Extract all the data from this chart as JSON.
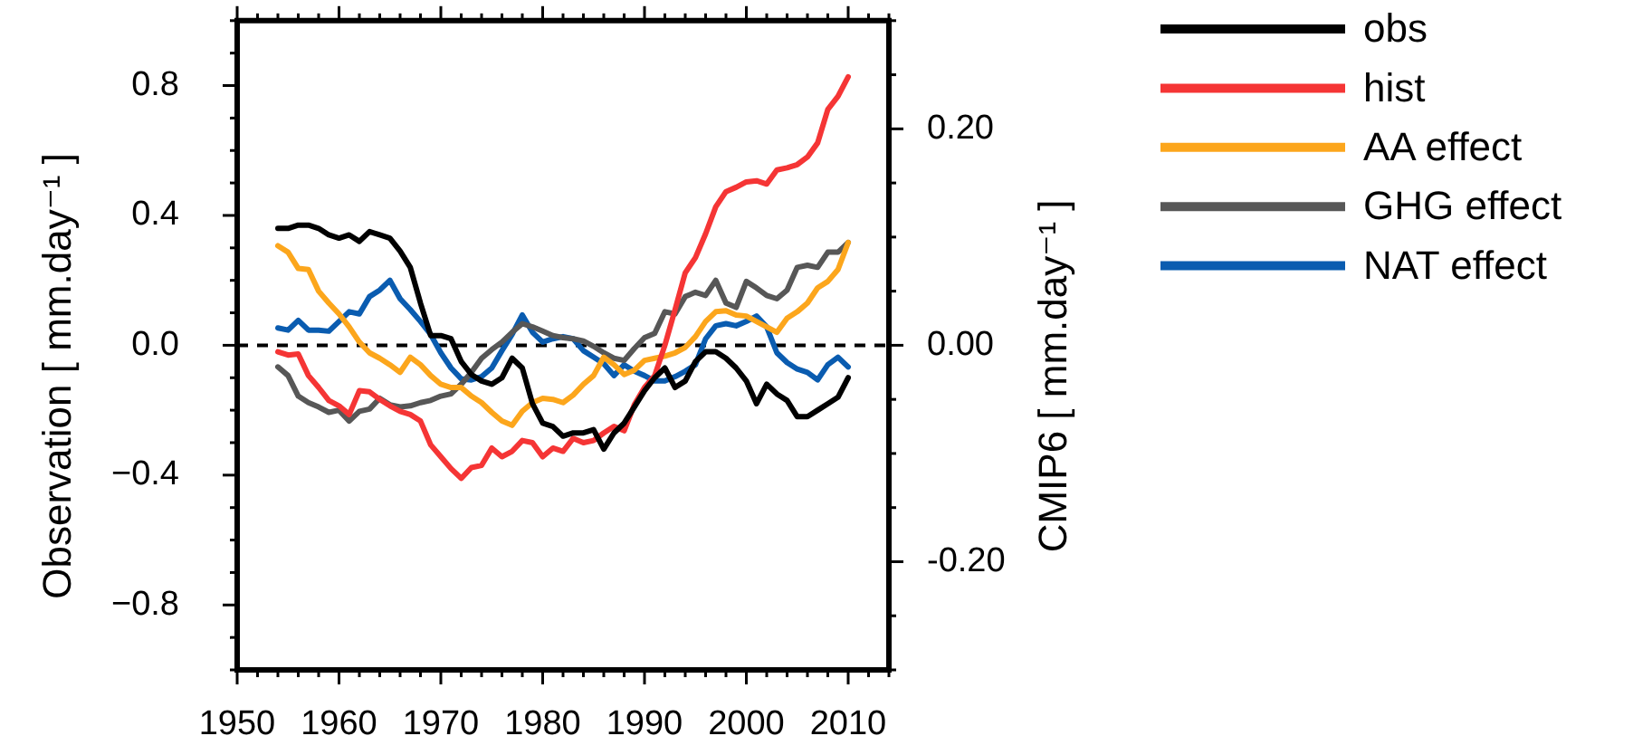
{
  "chart_data": {
    "type": "line",
    "marker": "none",
    "legend": "top right",
    "ylabel": "Observation [ mm.day⁻¹ ]",
    "y2label": "CMIP6 [ mm.day⁻¹ ]",
    "xlim": [
      1950,
      2014
    ],
    "xticks": [
      1950,
      {
        "value": 1952,
        "label": null
      },
      {
        "value": 1954,
        "label": null
      },
      {
        "value": 1956,
        "label": null
      },
      {
        "value": 1958,
        "label": null
      },
      1960,
      {
        "value": 1962,
        "label": null
      },
      {
        "value": 1964,
        "label": null
      },
      {
        "value": 1966,
        "label": null
      },
      {
        "value": 1968,
        "label": null
      },
      1970,
      {
        "value": 1972,
        "label": null
      },
      {
        "value": 1974,
        "label": null
      },
      {
        "value": 1976,
        "label": null
      },
      {
        "value": 1978,
        "label": null
      },
      1980,
      {
        "value": 1982,
        "label": null
      },
      {
        "value": 1984,
        "label": null
      },
      {
        "value": 1986,
        "label": null
      },
      {
        "value": 1988,
        "label": null
      },
      1990,
      {
        "value": 1992,
        "label": null
      },
      {
        "value": 1994,
        "label": null
      },
      {
        "value": 1996,
        "label": null
      },
      {
        "value": 1998,
        "label": null
      },
      2000,
      {
        "value": 2002,
        "label": null
      },
      {
        "value": 2004,
        "label": null
      },
      {
        "value": 2006,
        "label": null
      },
      {
        "value": 2008,
        "label": null
      },
      2010,
      {
        "value": 2012,
        "label": null
      },
      {
        "value": 2014,
        "label": null
      }
    ],
    "ylim": [
      -1,
      1
    ],
    "yticks": [
      {
        "value": -1,
        "label": null
      },
      {
        "value": -0.9,
        "label": null
      },
      {
        "value": -0.8,
        "label": "−0.8"
      },
      {
        "value": -0.7,
        "label": null
      },
      {
        "value": -0.6,
        "label": null
      },
      {
        "value": -0.5,
        "label": null
      },
      {
        "value": -0.4,
        "label": "−0.4"
      },
      {
        "value": -0.3,
        "label": null
      },
      {
        "value": -0.2,
        "label": null
      },
      {
        "value": -0.1,
        "label": null
      },
      {
        "value": 0,
        "label": "0.0"
      },
      {
        "value": 0.1,
        "label": null
      },
      {
        "value": 0.2,
        "label": null
      },
      {
        "value": 0.3,
        "label": null
      },
      0.4,
      {
        "value": 0.5,
        "label": null
      },
      {
        "value": 0.6,
        "label": null
      },
      {
        "value": 0.7,
        "label": null
      },
      0.8,
      {
        "value": 0.9,
        "label": null
      },
      {
        "value": 1,
        "label": null
      }
    ],
    "y2lim": [
      -0.3,
      0.3
    ],
    "y2ticks": [
      {
        "value": -0.3,
        "label": null
      },
      {
        "value": -0.25,
        "label": null
      },
      {
        "value": -0.2,
        "label": "-0.20"
      },
      {
        "value": -0.15,
        "label": null
      },
      {
        "value": -0.1,
        "label": null
      },
      {
        "value": -0.05,
        "label": null
      },
      {
        "value": 0,
        "label": "0.00"
      },
      {
        "value": 0.05,
        "label": null
      },
      {
        "value": 0.1,
        "label": null
      },
      {
        "value": 0.15,
        "label": null
      },
      {
        "value": 0.2,
        "label": "0.20"
      },
      {
        "value": 0.25,
        "label": null
      },
      {
        "value": 0.3,
        "label": null
      }
    ],
    "ref_lines": [
      {
        "axis": "y",
        "value": 0,
        "line_style": "dashed",
        "color": "#000000"
      }
    ],
    "x": [
      1954,
      1955,
      1956,
      1957,
      1958,
      1959,
      1960,
      1961,
      1962,
      1963,
      1964,
      1965,
      1966,
      1967,
      1968,
      1969,
      1970,
      1971,
      1972,
      1973,
      1974,
      1975,
      1976,
      1977,
      1978,
      1979,
      1980,
      1981,
      1982,
      1983,
      1984,
      1985,
      1986,
      1987,
      1988,
      1989,
      1990,
      1991,
      1992,
      1993,
      1994,
      1995,
      1996,
      1997,
      1998,
      1999,
      2000,
      2001,
      2002,
      2003,
      2004,
      2005,
      2006,
      2007,
      2008,
      2009,
      2010
    ],
    "series": [
      {
        "name": "obs",
        "color": "#000000",
        "values": [
          0.36,
          0.36,
          0.37,
          0.37,
          0.36,
          0.34,
          0.33,
          0.34,
          0.32,
          0.35,
          0.34,
          0.33,
          0.29,
          0.24,
          0.13,
          0.03,
          0.03,
          0.02,
          -0.05,
          -0.09,
          -0.11,
          -0.12,
          -0.1,
          -0.04,
          -0.07,
          -0.18,
          -0.24,
          -0.25,
          -0.28,
          -0.27,
          -0.27,
          -0.26,
          -0.32,
          -0.27,
          -0.24,
          -0.19,
          -0.14,
          -0.1,
          -0.07,
          -0.13,
          -0.11,
          -0.05,
          -0.02,
          -0.02,
          -0.04,
          -0.07,
          -0.11,
          -0.18,
          -0.12,
          -0.15,
          -0.17,
          -0.22,
          -0.22,
          -0.2,
          -0.18,
          -0.16,
          -0.1
        ]
      },
      {
        "name": "hist",
        "color": "#f53535",
        "axis": "y2",
        "values": [
          -0.006,
          -0.009,
          -0.008,
          -0.028,
          -0.039,
          -0.051,
          -0.056,
          -0.064,
          -0.042,
          -0.043,
          -0.05,
          -0.056,
          -0.061,
          -0.064,
          -0.07,
          -0.092,
          -0.103,
          -0.114,
          -0.123,
          -0.113,
          -0.111,
          -0.095,
          -0.103,
          -0.098,
          -0.088,
          -0.09,
          -0.103,
          -0.095,
          -0.098,
          -0.086,
          -0.09,
          -0.088,
          -0.081,
          -0.075,
          -0.079,
          -0.055,
          -0.039,
          -0.028,
          0.0,
          0.033,
          0.067,
          0.081,
          0.103,
          0.128,
          0.142,
          0.146,
          0.151,
          0.152,
          0.149,
          0.162,
          0.164,
          0.167,
          0.174,
          0.187,
          0.218,
          0.23,
          0.248
        ]
      },
      {
        "name": "AA effect",
        "color": "#fca61c",
        "axis": "y2",
        "values": [
          0.092,
          0.086,
          0.071,
          0.07,
          0.05,
          0.039,
          0.029,
          0.017,
          0.003,
          -0.007,
          -0.012,
          -0.018,
          -0.025,
          -0.011,
          -0.018,
          -0.028,
          -0.036,
          -0.039,
          -0.039,
          -0.047,
          -0.053,
          -0.062,
          -0.07,
          -0.074,
          -0.061,
          -0.053,
          -0.049,
          -0.05,
          -0.053,
          -0.046,
          -0.036,
          -0.028,
          -0.011,
          -0.018,
          -0.027,
          -0.023,
          -0.014,
          -0.012,
          -0.01,
          -0.007,
          -0.002,
          0.008,
          0.022,
          0.031,
          0.032,
          0.028,
          0.027,
          0.022,
          0.017,
          0.012,
          0.025,
          0.031,
          0.039,
          0.053,
          0.059,
          0.07,
          0.095
        ]
      },
      {
        "name": "GHG effect",
        "color": "#575757",
        "axis": "y2",
        "values": [
          -0.02,
          -0.028,
          -0.047,
          -0.053,
          -0.057,
          -0.062,
          -0.06,
          -0.07,
          -0.061,
          -0.059,
          -0.049,
          -0.055,
          -0.057,
          -0.056,
          -0.053,
          -0.051,
          -0.047,
          -0.045,
          -0.036,
          -0.025,
          -0.012,
          -0.004,
          0.003,
          0.012,
          0.02,
          0.017,
          0.013,
          0.009,
          0.007,
          0.006,
          0.004,
          -0.001,
          -0.007,
          -0.012,
          -0.014,
          -0.003,
          0.007,
          0.011,
          0.031,
          0.029,
          0.045,
          0.049,
          0.046,
          0.06,
          0.039,
          0.035,
          0.059,
          0.053,
          0.046,
          0.043,
          0.051,
          0.072,
          0.074,
          0.072,
          0.086,
          0.086,
          0.095
        ]
      },
      {
        "name": "NAT effect",
        "color": "#0a5cb0",
        "axis": "y2",
        "values": [
          0.016,
          0.014,
          0.023,
          0.014,
          0.014,
          0.013,
          0.022,
          0.031,
          0.029,
          0.045,
          0.051,
          0.06,
          0.043,
          0.033,
          0.022,
          0.01,
          -0.007,
          -0.021,
          -0.031,
          -0.032,
          -0.029,
          -0.021,
          -0.005,
          0.01,
          0.028,
          0.012,
          0.003,
          0.006,
          0.008,
          0.006,
          -0.005,
          -0.011,
          -0.017,
          -0.028,
          -0.018,
          -0.024,
          -0.028,
          -0.033,
          -0.033,
          -0.029,
          -0.024,
          -0.018,
          0.006,
          0.018,
          0.02,
          0.018,
          0.022,
          0.027,
          0.017,
          -0.007,
          -0.016,
          -0.022,
          -0.025,
          -0.032,
          -0.018,
          -0.011,
          -0.02
        ]
      }
    ]
  }
}
